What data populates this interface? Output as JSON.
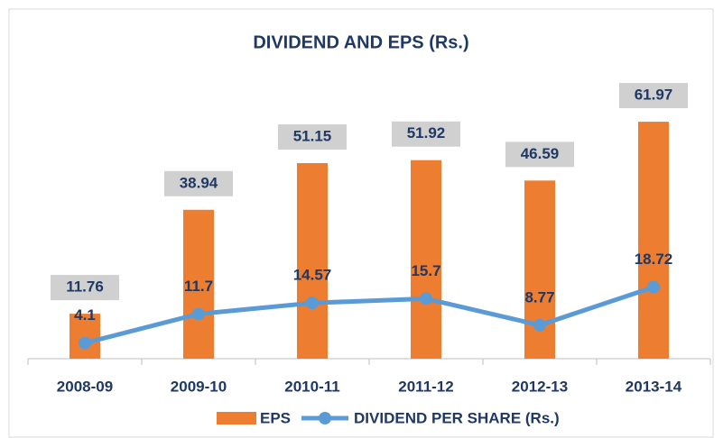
{
  "chart_data": {
    "type": "bar-line",
    "title": "DIVIDEND AND EPS (Rs.)",
    "categories": [
      "2008-09",
      "2009-10",
      "2010-11",
      "2011-12",
      "2012-13",
      "2013-14"
    ],
    "series": [
      {
        "name": "EPS",
        "type": "bar",
        "color": "#ed7d31",
        "values": [
          11.76,
          38.94,
          51.15,
          51.92,
          46.59,
          61.97
        ]
      },
      {
        "name": "DIVIDEND PER SHARE (Rs.)",
        "type": "line",
        "color": "#5b9bd5",
        "values": [
          4.1,
          11.7,
          14.57,
          15.7,
          8.77,
          18.72
        ]
      }
    ],
    "ylim": [
      0,
      70
    ],
    "legend": "bottom"
  }
}
